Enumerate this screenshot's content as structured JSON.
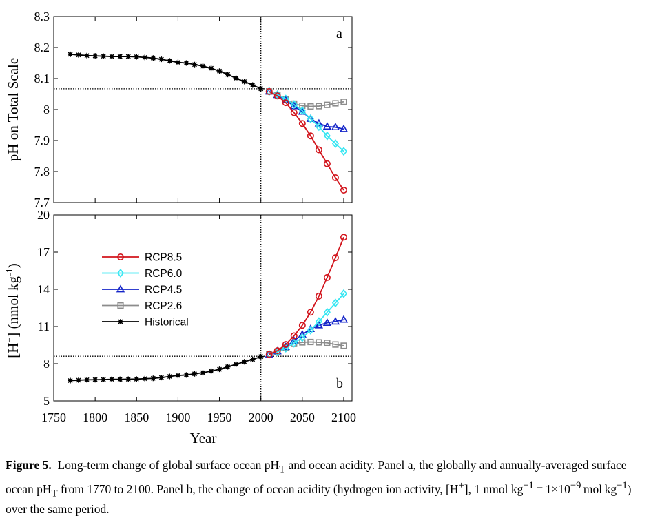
{
  "chart_data": [
    {
      "type": "line",
      "panel": "a",
      "ylabel": "pH on Total Scale",
      "xlabel": "",
      "xlim": [
        1750,
        2110
      ],
      "ylim": [
        7.7,
        8.3
      ],
      "yticks": [
        "7.7",
        "7.8",
        "7.9",
        "8",
        "8.1",
        "8.2",
        "8.3"
      ],
      "reference_lines": {
        "x": 2000,
        "y": 8.067
      },
      "series": [
        {
          "name": "Historical",
          "x": [
            1770,
            1780,
            1790,
            1800,
            1810,
            1820,
            1830,
            1840,
            1850,
            1860,
            1870,
            1880,
            1890,
            1900,
            1910,
            1920,
            1930,
            1940,
            1950,
            1960,
            1970,
            1980,
            1990,
            2000
          ],
          "values": [
            8.178,
            8.176,
            8.174,
            8.173,
            8.172,
            8.171,
            8.171,
            8.171,
            8.17,
            8.168,
            8.166,
            8.162,
            8.157,
            8.152,
            8.15,
            8.145,
            8.14,
            8.133,
            8.124,
            8.113,
            8.101,
            8.09,
            8.079,
            8.067
          ]
        },
        {
          "name": "RCP8.5",
          "x": [
            2010,
            2020,
            2030,
            2040,
            2050,
            2060,
            2070,
            2080,
            2090,
            2100
          ],
          "values": [
            8.058,
            8.044,
            8.022,
            7.99,
            7.955,
            7.915,
            7.87,
            7.825,
            7.78,
            7.74
          ]
        },
        {
          "name": "RCP6.0",
          "x": [
            2010,
            2020,
            2030,
            2040,
            2050,
            2060,
            2070,
            2080,
            2090,
            2100
          ],
          "values": [
            8.058,
            8.048,
            8.034,
            8.016,
            7.996,
            7.97,
            7.945,
            7.915,
            7.89,
            7.865
          ]
        },
        {
          "name": "RCP4.5",
          "x": [
            2010,
            2020,
            2030,
            2040,
            2050,
            2060,
            2070,
            2080,
            2090,
            2100
          ],
          "values": [
            8.058,
            8.047,
            8.03,
            8.011,
            7.993,
            7.97,
            7.955,
            7.945,
            7.943,
            7.937
          ]
        },
        {
          "name": "RCP2.6",
          "x": [
            2010,
            2020,
            2030,
            2040,
            2050,
            2060,
            2070,
            2080,
            2090,
            2100
          ],
          "values": [
            8.058,
            8.047,
            8.032,
            8.019,
            8.012,
            8.01,
            8.011,
            8.015,
            8.02,
            8.025
          ]
        }
      ]
    },
    {
      "type": "line",
      "panel": "b",
      "ylabel_main": "[H",
      "ylabel_sup1": "+",
      "ylabel_mid": "] (nmol kg",
      "ylabel_sup2": "-1",
      "ylabel_end": ")",
      "xlabel": "Year",
      "xlim": [
        1750,
        2110
      ],
      "ylim": [
        5,
        20
      ],
      "yticks": [
        "5",
        "8",
        "11",
        "14",
        "17",
        "20"
      ],
      "xticks": [
        "1750",
        "1800",
        "1850",
        "1900",
        "1950",
        "2000",
        "2050",
        "2100"
      ],
      "reference_lines": {
        "x": 2000,
        "y": 8.6
      },
      "series": [
        {
          "name": "Historical",
          "x": [
            1770,
            1780,
            1790,
            1800,
            1810,
            1820,
            1830,
            1840,
            1850,
            1860,
            1870,
            1880,
            1890,
            1900,
            1910,
            1920,
            1930,
            1940,
            1950,
            1960,
            1970,
            1980,
            1990,
            2000
          ],
          "values": [
            6.64,
            6.67,
            6.7,
            6.71,
            6.72,
            6.74,
            6.74,
            6.75,
            6.76,
            6.79,
            6.82,
            6.88,
            6.97,
            7.05,
            7.09,
            7.18,
            7.27,
            7.4,
            7.55,
            7.75,
            7.95,
            8.15,
            8.35,
            8.57
          ]
        },
        {
          "name": "RCP8.5",
          "x": [
            2010,
            2020,
            2030,
            2040,
            2050,
            2060,
            2070,
            2080,
            2090,
            2100
          ],
          "values": [
            8.75,
            9.05,
            9.55,
            10.25,
            11.1,
            12.15,
            13.45,
            14.95,
            16.55,
            18.2
          ]
        },
        {
          "name": "RCP6.0",
          "x": [
            2010,
            2020,
            2030,
            2040,
            2050,
            2060,
            2070,
            2080,
            2090,
            2100
          ],
          "values": [
            8.75,
            8.95,
            9.25,
            9.65,
            10.1,
            10.7,
            11.4,
            12.15,
            12.9,
            13.65
          ]
        },
        {
          "name": "RCP4.5",
          "x": [
            2010,
            2020,
            2030,
            2040,
            2050,
            2060,
            2070,
            2080,
            2090,
            2100
          ],
          "values": [
            8.75,
            9.0,
            9.35,
            9.85,
            10.35,
            10.8,
            11.1,
            11.3,
            11.4,
            11.55
          ]
        },
        {
          "name": "RCP2.6",
          "x": [
            2010,
            2020,
            2030,
            2040,
            2050,
            2060,
            2070,
            2080,
            2090,
            2100
          ],
          "values": [
            8.75,
            8.98,
            9.3,
            9.6,
            9.72,
            9.75,
            9.72,
            9.68,
            9.55,
            9.45
          ]
        }
      ]
    }
  ],
  "legend": {
    "placement": "upper-left of panel b",
    "entries": [
      "RCP8.5",
      "RCP6.0",
      "RCP4.5",
      "RCP2.6",
      "Historical"
    ]
  },
  "styles": {
    "RCP8.5": {
      "color": "#d2141c",
      "marker": "circle"
    },
    "RCP6.0": {
      "color": "#35e6f2",
      "marker": "diamond"
    },
    "RCP4.5": {
      "color": "#1424c8",
      "marker": "triangle"
    },
    "RCP2.6": {
      "color": "#8c8c8c",
      "marker": "square"
    },
    "Historical": {
      "color": "#000000",
      "marker": "star"
    }
  },
  "caption": {
    "label": "Figure 5.",
    "part1": "Long-term change of global surface ocean pH",
    "sub1": "T",
    "part2": " and ocean acidity. Panel a, the globally and annually-averaged surface ocean pH",
    "sub2": "T",
    "part3": " from 1770 to 2100. Panel b, the change of ocean acidity (hydrogen ion activity, [H",
    "sup1": "+",
    "part4": "], 1 nmol kg",
    "sup2": "−1",
    "part5": " = 1×10",
    "sup3": "−9",
    "part6": " mol kg",
    "sup4": "−1",
    "part7": ") over the same period."
  }
}
